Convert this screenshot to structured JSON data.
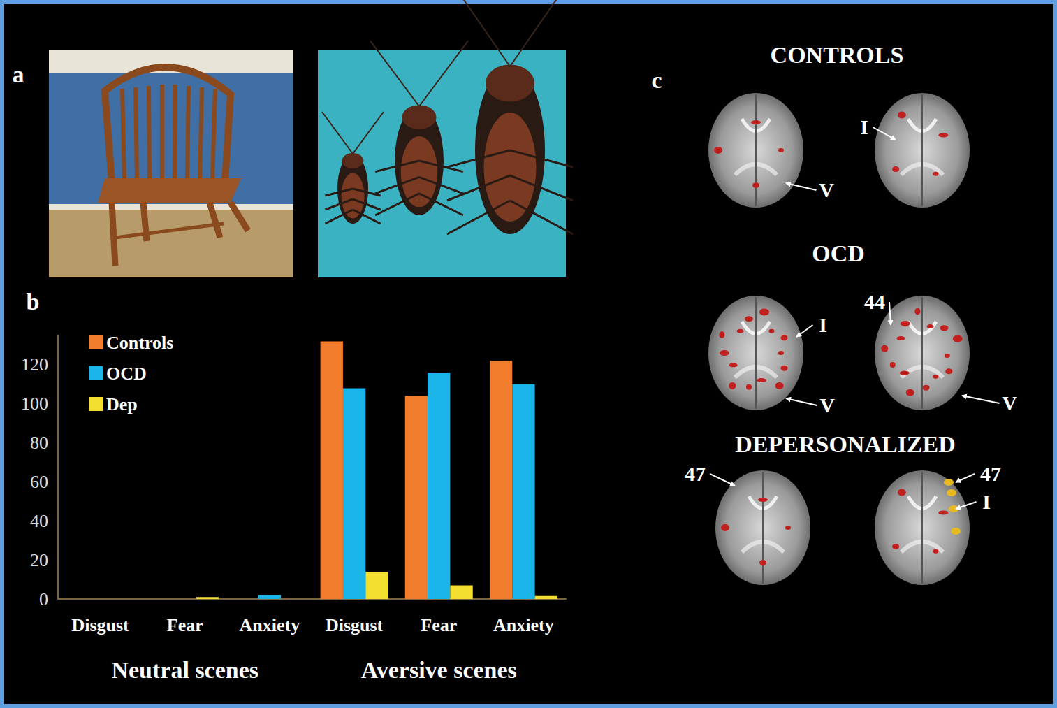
{
  "panels": {
    "a": {
      "letter": "a"
    },
    "b": {
      "letter": "b"
    },
    "c": {
      "letter": "c",
      "groups": [
        {
          "title": "CONTROLS",
          "labels": [
            "V",
            "I"
          ]
        },
        {
          "title": "OCD",
          "labels": [
            "I",
            "V",
            "44",
            "V"
          ]
        },
        {
          "title": "DEPERSONALIZED",
          "labels": [
            "47",
            "47",
            "I"
          ]
        }
      ]
    }
  },
  "chart_data": {
    "type": "bar",
    "categories": [
      "Disgust",
      "Fear",
      "Anxiety",
      "Disgust",
      "Fear",
      "Anxiety"
    ],
    "category_groups": [
      "Neutral scenes",
      "Neutral scenes",
      "Neutral scenes",
      "Aversive scenes",
      "Aversive scenes",
      "Aversive scenes"
    ],
    "series": [
      {
        "name": "Controls",
        "color": "#f07c2c",
        "values": [
          0,
          0,
          0,
          132,
          104,
          122
        ]
      },
      {
        "name": "OCD",
        "color": "#1ab4e8",
        "values": [
          0,
          0,
          2,
          108,
          116,
          110
        ]
      },
      {
        "name": "Dep",
        "color": "#f3df30",
        "values": [
          0,
          1,
          0,
          14,
          7,
          1.5
        ]
      }
    ],
    "ylim": [
      0,
      135
    ],
    "yticks": [
      0,
      20,
      40,
      60,
      80,
      100,
      120
    ],
    "grid": false,
    "legend": "upper left",
    "data_labels": false
  }
}
